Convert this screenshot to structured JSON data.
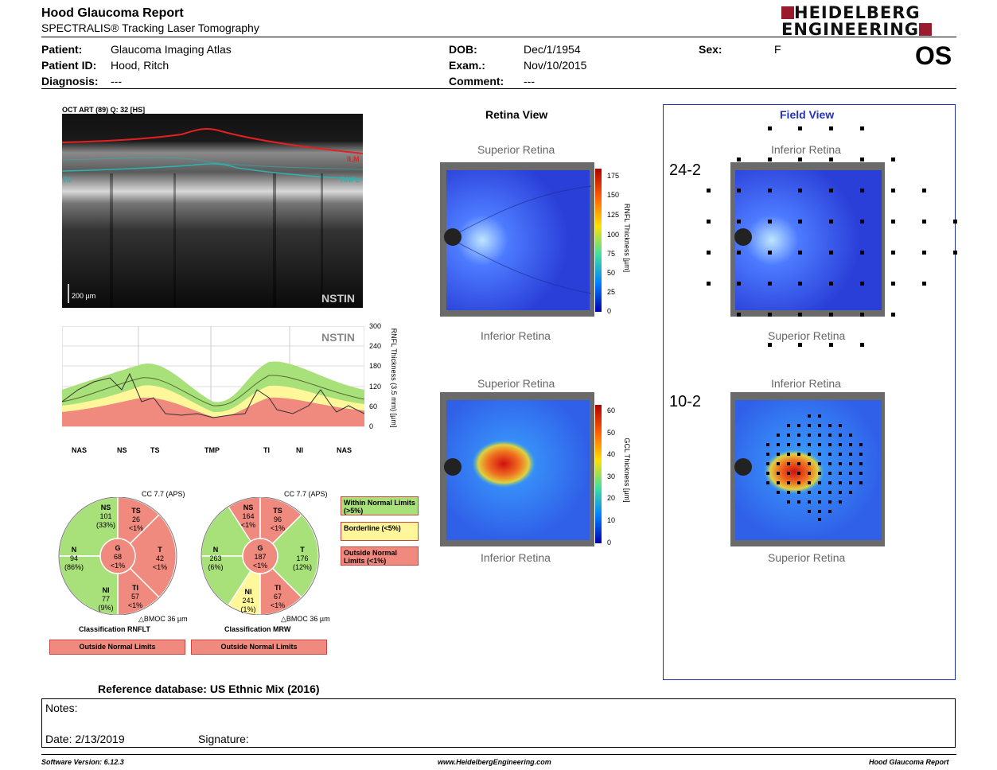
{
  "header": {
    "title": "Hood Glaucoma Report",
    "subtitle": "SPECTRALIS® Tracking Laser Tomography",
    "logo_line1": "HEIDELBERG",
    "logo_line2": "ENGINEERING",
    "eye": "OS"
  },
  "patient": {
    "patient_label": "Patient:",
    "patient_value": "Glaucoma Imaging Atlas",
    "id_label": "Patient ID:",
    "id_value": "Hood, Ritch",
    "diagnosis_label": "Diagnosis:",
    "diagnosis_value": "---",
    "dob_label": "DOB:",
    "dob_value": "Dec/1/1954",
    "exam_label": "Exam.:",
    "exam_value": "Nov/10/2015",
    "comment_label": "Comment:",
    "comment_value": "---",
    "sex_label": "Sex:",
    "sex_value": "F"
  },
  "oct": {
    "scan_label": "OCT ART (89) Q: 32 [HS]",
    "ilm": "ILM",
    "ri": "RI",
    "rnfl": "RNFL",
    "scale": "200 µm",
    "nstin": "NSTIN"
  },
  "profile": {
    "label": "NSTIN",
    "y_axis_label": "RNFL Thickness (3.5 mm) [µm]",
    "y_ticks": [
      "300",
      "240",
      "180",
      "120",
      "60",
      "0"
    ],
    "x_ticks": [
      "NAS",
      "NS",
      "TS",
      "TMP",
      "TI",
      "NI",
      "NAS"
    ]
  },
  "circle_rnflt": {
    "cc": "CC 7.7 (APS)",
    "sectors": {
      "NS": {
        "name": "NS",
        "value": "101",
        "pct": "(33%)"
      },
      "TS": {
        "name": "TS",
        "value": "26",
        "pct": "<1%"
      },
      "N": {
        "name": "N",
        "value": "94",
        "pct": "(86%)"
      },
      "G": {
        "name": "G",
        "value": "68",
        "pct": "<1%"
      },
      "T": {
        "name": "T",
        "value": "42",
        "pct": "<1%"
      },
      "NI": {
        "name": "NI",
        "value": "77",
        "pct": "(9%)"
      },
      "TI": {
        "name": "TI",
        "value": "57",
        "pct": "<1%"
      }
    },
    "bmoc": "BMOC 36 µm",
    "classification_label": "Classification RNFLT",
    "classification_value": "Outside Normal Limits"
  },
  "circle_mrw": {
    "cc": "CC 7.7 (APS)",
    "sectors": {
      "NS": {
        "name": "NS",
        "value": "164",
        "pct": "<1%"
      },
      "TS": {
        "name": "TS",
        "value": "96",
        "pct": "<1%"
      },
      "N": {
        "name": "N",
        "value": "263",
        "pct": "(6%)"
      },
      "G": {
        "name": "G",
        "value": "187",
        "pct": "<1%"
      },
      "T": {
        "name": "T",
        "value": "176",
        "pct": "(12%)"
      },
      "NI": {
        "name": "NI",
        "value": "241",
        "pct": "(1%)"
      },
      "TI": {
        "name": "TI",
        "value": "67",
        "pct": "<1%"
      }
    },
    "bmoc": "BMOC 36 µm",
    "classification_label": "Classification MRW",
    "classification_value": "Outside Normal Limits"
  },
  "legend": {
    "within": "Within Normal Limits (>5%)",
    "borderline": "Borderline (<5%)",
    "outside": "Outside Normal Limits (<1%)"
  },
  "retina_view": {
    "title": "Retina View",
    "map1_top": "Superior Retina",
    "map1_bottom": "Inferior Retina",
    "map1_scale_label": "RNFL Thickness [µm]",
    "map1_ticks": [
      "175",
      "150",
      "125",
      "100",
      "75",
      "50",
      "25",
      "0"
    ],
    "map2_top": "Superior Retina",
    "map2_bottom": "Inferior Retina",
    "map2_scale_label": "GCL Thickness [µm]",
    "map2_ticks": [
      "60",
      "50",
      "40",
      "30",
      "20",
      "10",
      "0"
    ]
  },
  "field_view": {
    "title": "Field View",
    "map1_top": "Inferior Retina",
    "map1_bottom": "Superior Retina",
    "map1_label": "24-2",
    "map2_top": "Inferior Retina",
    "map2_bottom": "Superior Retina",
    "map2_label": "10-2"
  },
  "reference": "Reference database: US Ethnic Mix (2016)",
  "notes": {
    "notes_label": "Notes:",
    "date_label": "Date: 2/13/2019",
    "signature_label": "Signature:"
  },
  "footer": {
    "version": "Software Version: 6.12.3",
    "website": "www.HeidelbergEngineering.com",
    "report": "Hood Glaucoma Report"
  },
  "colors": {
    "normal": "#a8e07a",
    "borderline": "#fff79a",
    "outside": "#f08a7e",
    "field_border": "#2233bb",
    "logo_red": "#9b1b2e"
  }
}
